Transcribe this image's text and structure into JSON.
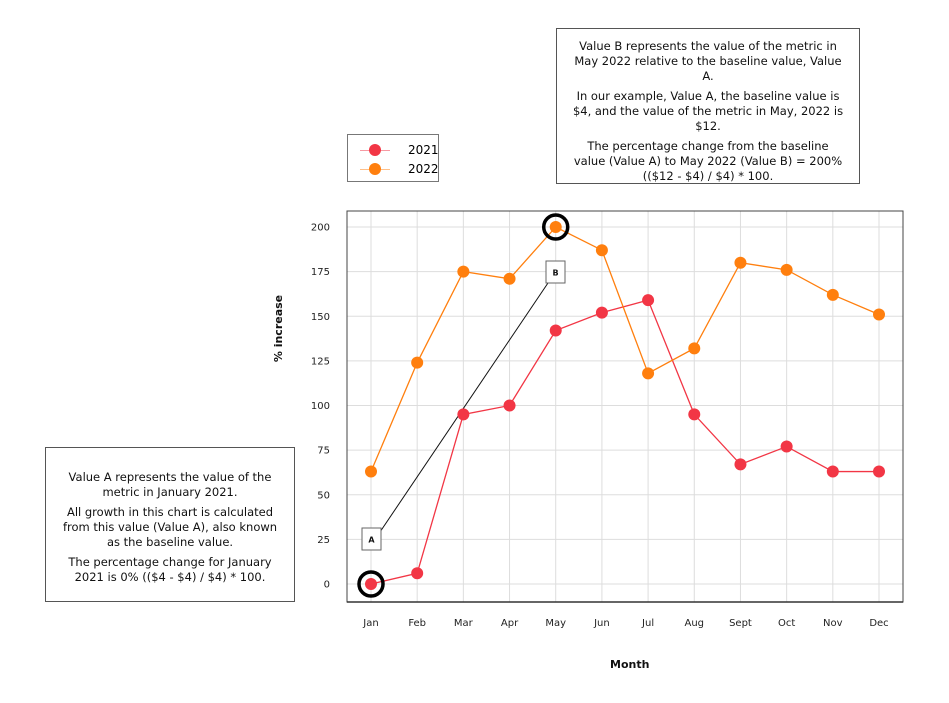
{
  "chart_data": {
    "type": "line",
    "title": "",
    "xlabel": "Month",
    "ylabel": "% increase",
    "categories": [
      "Jan",
      "Feb",
      "Mar",
      "Apr",
      "May",
      "Jun",
      "Jul",
      "Aug",
      "Sept",
      "Oct",
      "Nov",
      "Dec"
    ],
    "yticks": [
      "0",
      "25",
      "50",
      "75",
      "100",
      "125",
      "150",
      "175",
      "200"
    ],
    "ylim": [
      -9,
      209
    ],
    "grid": true,
    "legend_placement": "top-left, outside plot",
    "series": [
      {
        "name": "2021",
        "color": "#f23645",
        "values": [
          0,
          6,
          95,
          100,
          142,
          152,
          159,
          95,
          67,
          77,
          63,
          63
        ]
      },
      {
        "name": "2022",
        "color": "#ff7f0e",
        "values": [
          63,
          124,
          175,
          171,
          200,
          187,
          118,
          132,
          180,
          176,
          162,
          151
        ]
      }
    ],
    "annotations": [
      {
        "label": "A",
        "month": "Jan",
        "series": "2021",
        "value": 0
      },
      {
        "label": "B",
        "month": "May",
        "series": "2022",
        "value": 200
      }
    ]
  },
  "notes": {
    "b": [
      "Value B represents the value of the metric in May 2022 relative to the baseline value, Value A.",
      "In our example, Value A, the baseline value is $4, and the value of the metric in May, 2022 is $12.",
      "The percentage change from the baseline value (Value A) to May 2022 (Value B) = 200% (($12 - $4) / $4) * 100."
    ],
    "a": [
      "Value A represents the value of the metric in January 2021.",
      "All growth in this chart is calculated from this value (Value A), also known as the baseline value.",
      "The percentage change for January 2021 is 0% (($4 - $4) / $4) * 100."
    ]
  }
}
